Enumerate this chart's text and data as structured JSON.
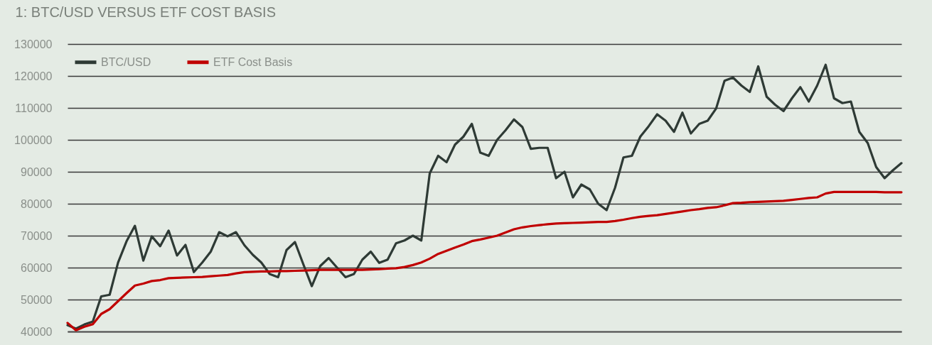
{
  "chart_data": {
    "type": "line",
    "title": "1: BTC/USD VERSUS ETF COST BASIS",
    "categories": [
      null,
      null,
      null,
      null,
      null,
      null,
      null,
      null,
      null,
      null,
      null,
      null,
      null,
      null,
      null,
      null,
      null,
      null,
      null,
      null,
      null,
      null,
      null,
      null,
      null,
      null,
      null,
      null,
      null,
      null,
      null,
      null,
      null,
      null,
      null,
      null,
      null,
      null,
      null,
      null,
      null,
      null,
      null,
      null,
      null,
      null,
      null,
      null,
      null,
      null,
      null,
      null,
      null,
      null,
      null,
      null,
      null,
      null,
      null,
      null,
      null,
      null,
      null,
      null,
      null,
      null,
      null,
      null,
      null,
      null,
      null,
      null,
      null,
      null,
      null,
      null,
      null,
      null,
      null,
      null,
      null,
      null,
      null,
      null,
      null,
      null,
      null,
      null,
      null,
      null,
      null,
      null,
      null,
      null,
      null,
      null,
      null,
      null,
      null,
      null
    ],
    "series": [
      {
        "name": "BTC/USD",
        "color": "#2e3a35",
        "values": [
          42000,
          40900,
          42200,
          43100,
          51000,
          51500,
          61600,
          68200,
          73100,
          62200,
          69800,
          66700,
          71600,
          63800,
          67100,
          58600,
          61600,
          65000,
          71100,
          69800,
          71100,
          67000,
          64000,
          61600,
          58000,
          57000,
          65500,
          68000,
          61000,
          54200,
          60500,
          63000,
          60000,
          57000,
          58000,
          62500,
          65000,
          61500,
          62500,
          67600,
          68500,
          70000,
          68500,
          89500,
          95000,
          93000,
          98500,
          101000,
          105000,
          96000,
          95000,
          100000,
          103000,
          106400,
          104000,
          97200,
          97500,
          97500,
          88000,
          90000,
          82000,
          86000,
          84500,
          80000,
          78000,
          85000,
          94500,
          95000,
          101000,
          104300,
          108000,
          106000,
          102500,
          108500,
          102000,
          105000,
          106000,
          109800,
          118500,
          119500,
          117000,
          115000,
          123000,
          113500,
          111000,
          109000,
          113000,
          116500,
          112000,
          117000,
          123500,
          113000,
          111500,
          112000,
          102500,
          99000,
          91500,
          88000,
          90500,
          92700
        ]
      },
      {
        "name": "ETF Cost Basis",
        "color": "#c00000",
        "values": [
          42700,
          40400,
          41500,
          42300,
          45500,
          47000,
          49500,
          52000,
          54400,
          55000,
          55800,
          56100,
          56700,
          56800,
          56900,
          57000,
          57100,
          57300,
          57500,
          57700,
          58200,
          58600,
          58700,
          58800,
          58800,
          58900,
          58900,
          59000,
          59100,
          59200,
          59300,
          59300,
          59300,
          59300,
          59300,
          59300,
          59400,
          59500,
          59700,
          59800,
          60200,
          60800,
          61600,
          62800,
          64300,
          65300,
          66300,
          67200,
          68300,
          68800,
          69400,
          70000,
          71000,
          72000,
          72600,
          73000,
          73300,
          73600,
          73800,
          73900,
          74000,
          74100,
          74200,
          74300,
          74300,
          74600,
          75000,
          75500,
          75900,
          76200,
          76400,
          76800,
          77200,
          77600,
          78000,
          78300,
          78700,
          78900,
          79500,
          80200,
          80300,
          80500,
          80600,
          80700,
          80800,
          80900,
          81200,
          81500,
          81800,
          82000,
          83200,
          83700,
          83700,
          83700,
          83700,
          83700,
          83700,
          83600,
          83600,
          83600
        ]
      }
    ],
    "ylim": [
      40000,
      130000
    ],
    "yticks": [
      40000,
      50000,
      60000,
      70000,
      80000,
      90000,
      100000,
      110000,
      120000,
      130000
    ],
    "grid": "y",
    "legend": "top left",
    "line_style": "solid"
  }
}
